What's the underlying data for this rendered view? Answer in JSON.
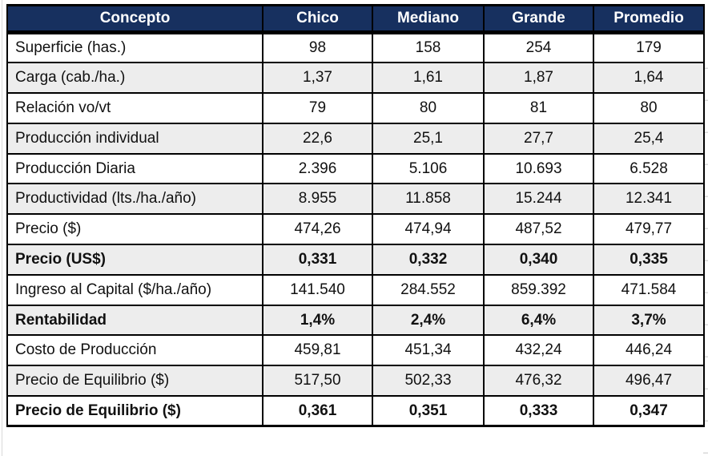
{
  "chart_data": {
    "type": "table",
    "title": "",
    "columns": [
      "Concepto",
      "Chico",
      "Mediano",
      "Grande",
      "Promedio"
    ],
    "rows": [
      {
        "label": "Superficie (has.)",
        "values": [
          "98",
          "158",
          "254",
          "179"
        ],
        "bold": false
      },
      {
        "label": "Carga (cab./ha.)",
        "values": [
          "1,37",
          "1,61",
          "1,87",
          "1,64"
        ],
        "bold": false
      },
      {
        "label": "Relación vo/vt",
        "values": [
          "79",
          "80",
          "81",
          "80"
        ],
        "bold": false
      },
      {
        "label": "Producción individual",
        "values": [
          "22,6",
          "25,1",
          "27,7",
          "25,4"
        ],
        "bold": false
      },
      {
        "label": "Producción Diaria",
        "values": [
          "2.396",
          "5.106",
          "10.693",
          "6.528"
        ],
        "bold": false
      },
      {
        "label": "Productividad (lts./ha./año)",
        "values": [
          "8.955",
          "11.858",
          "15.244",
          "12.341"
        ],
        "bold": false
      },
      {
        "label": "Precio ($)",
        "values": [
          "474,26",
          "474,94",
          "487,52",
          "479,77"
        ],
        "bold": false
      },
      {
        "label": "Precio (US$)",
        "values": [
          "0,331",
          "0,332",
          "0,340",
          "0,335"
        ],
        "bold": true
      },
      {
        "label": "Ingreso al Capital ($/ha./año)",
        "values": [
          "141.540",
          "284.552",
          "859.392",
          "471.584"
        ],
        "bold": false
      },
      {
        "label": "Rentabilidad",
        "values": [
          "1,4%",
          "2,4%",
          "6,4%",
          "3,7%"
        ],
        "bold": true
      },
      {
        "label": "Costo de Producción",
        "values": [
          "459,81",
          "451,34",
          "432,24",
          "446,24"
        ],
        "bold": false
      },
      {
        "label": "Precio de Equilibrio ($)",
        "values": [
          "517,50",
          "502,33",
          "476,32",
          "496,47"
        ],
        "bold": false
      },
      {
        "label": "Precio de Equilibrio ($)",
        "values": [
          "0,361",
          "0,351",
          "0,333",
          "0,347"
        ],
        "bold": true
      }
    ],
    "layout": {
      "header_row": true,
      "alternating_rows": true,
      "grid": true
    }
  },
  "colors": {
    "header_bg": "#17305F",
    "header_text": "#FFFFFF",
    "row_alt_bg": "#EDEDED",
    "border": "#000000",
    "gridline": "#D9D9D9"
  }
}
